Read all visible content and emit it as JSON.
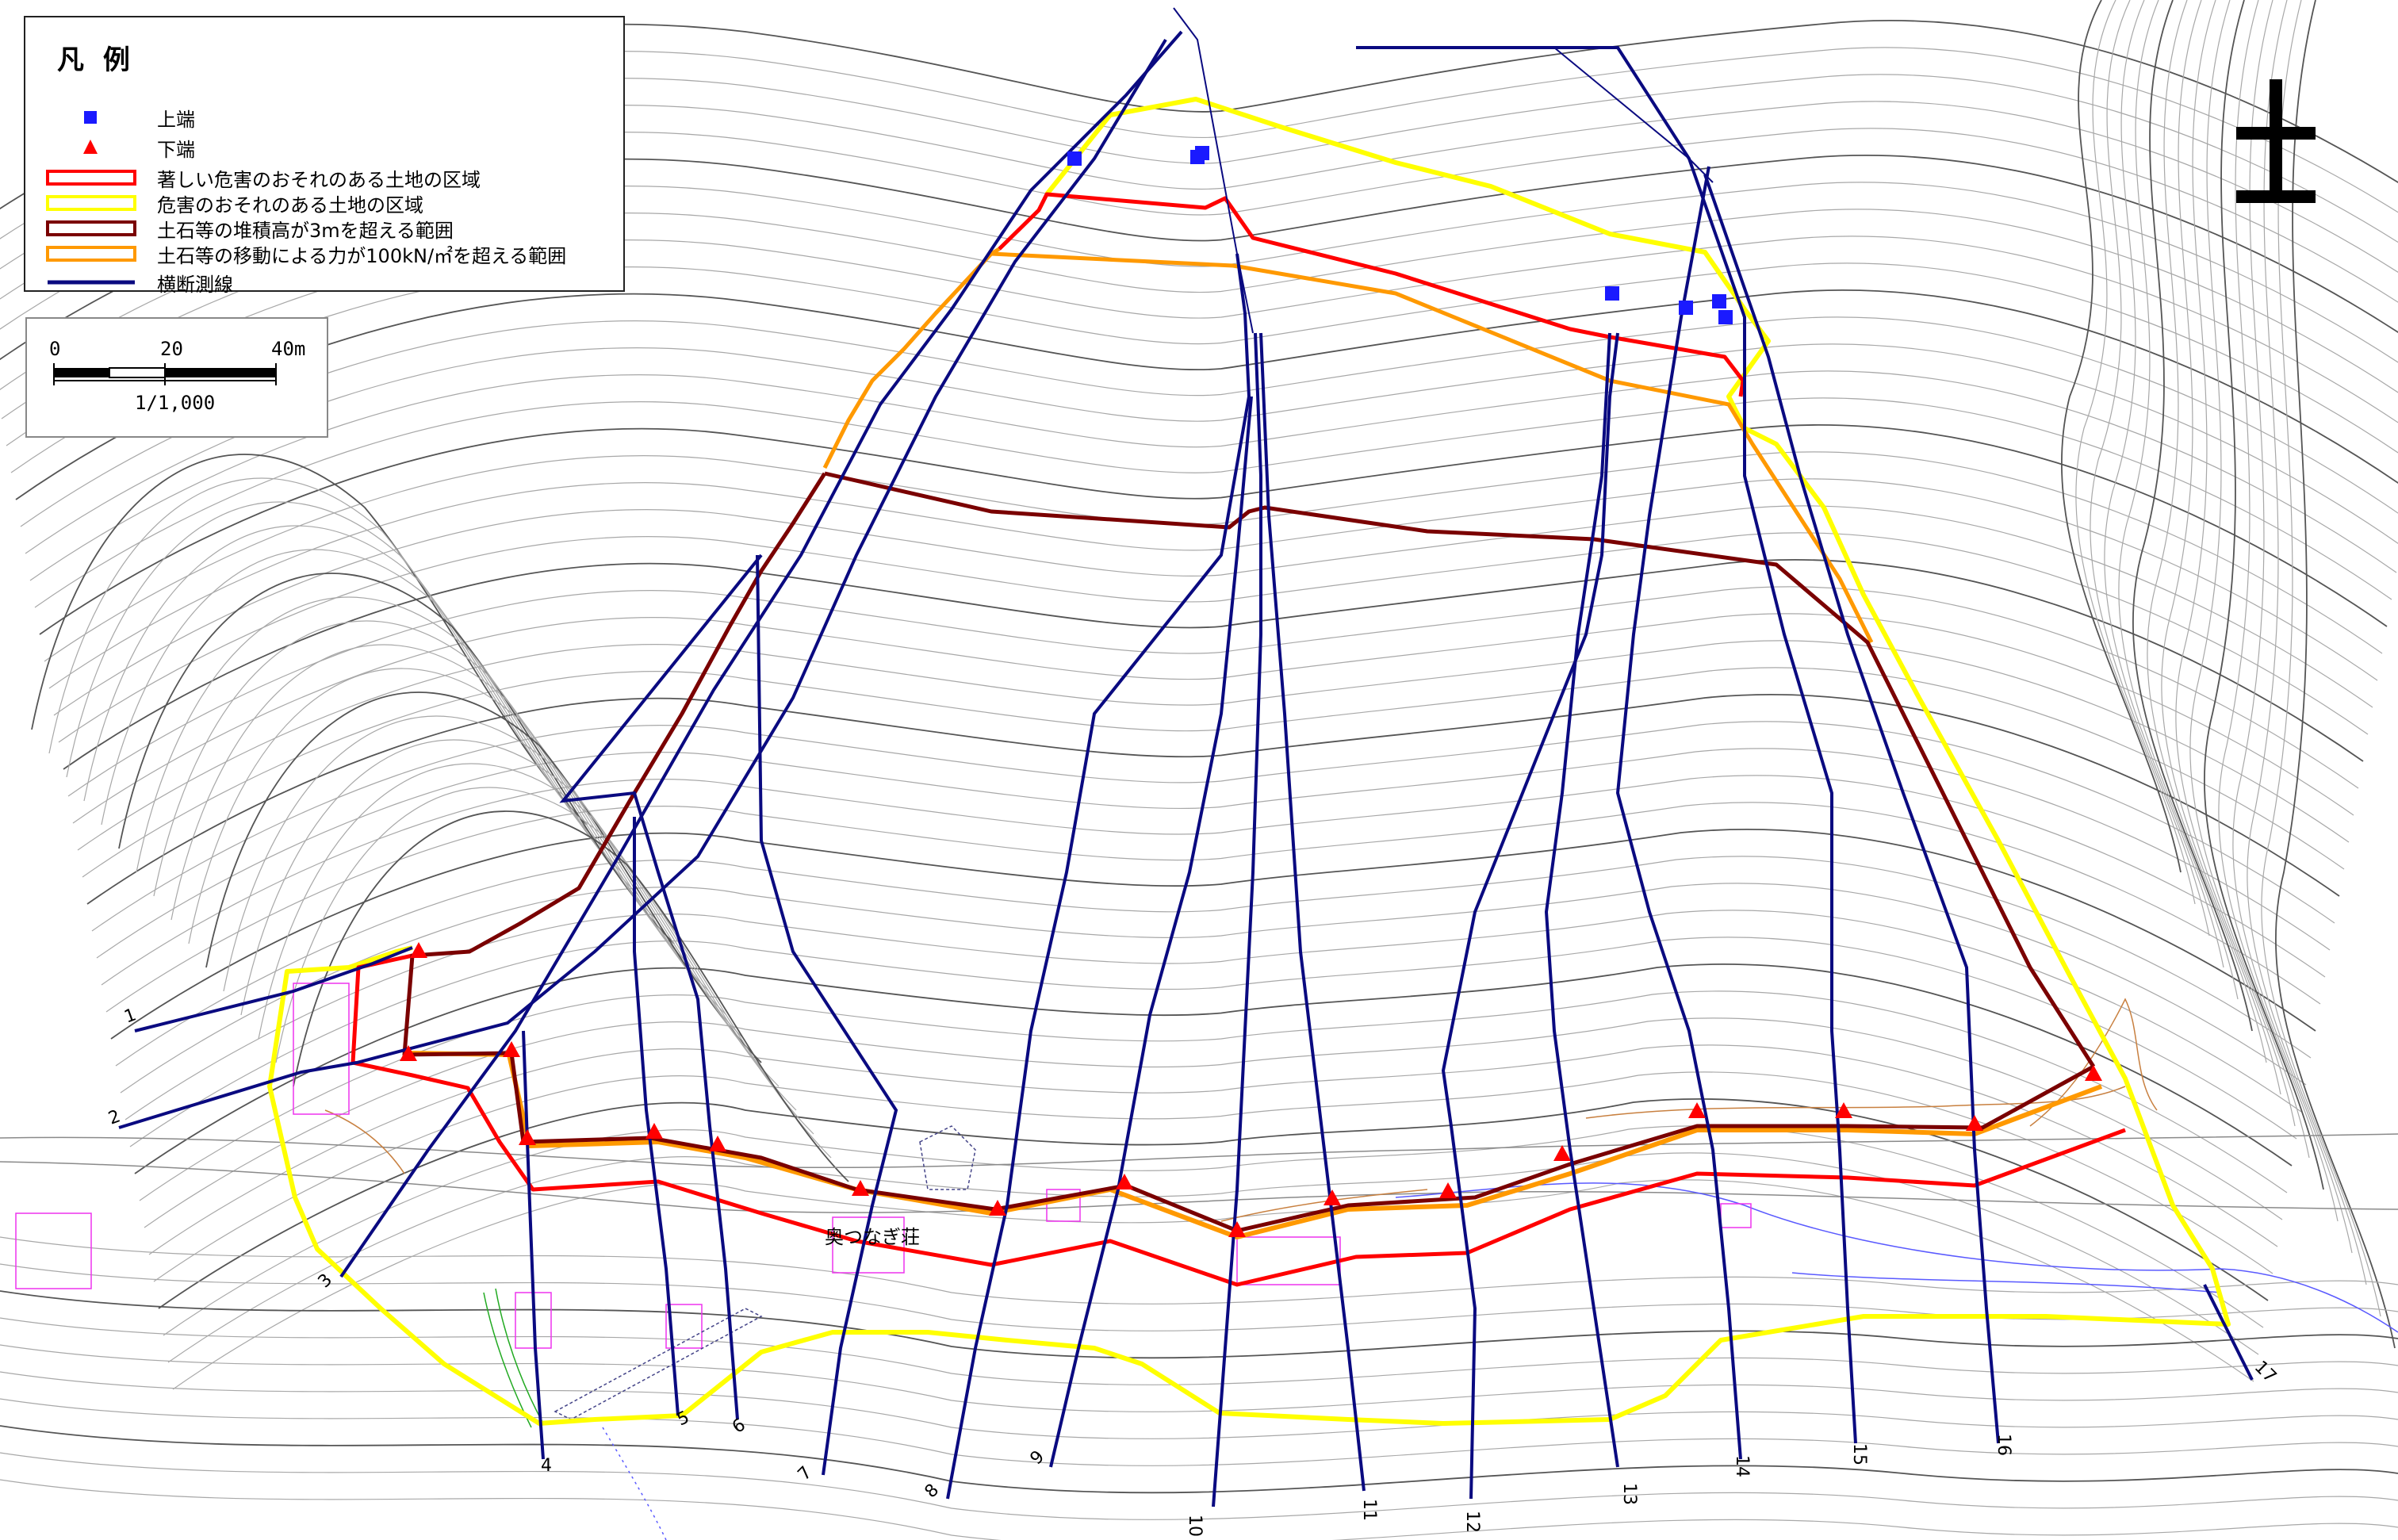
{
  "legend": {
    "title": "凡 例",
    "items": [
      {
        "label": "上端",
        "symbol": "square",
        "color": "#1a1aff"
      },
      {
        "label": "下端",
        "symbol": "triangle",
        "color": "#ff0000"
      },
      {
        "label": "著しい危害のおそれのある土地の区域",
        "symbol": "box",
        "color": "#ff0000"
      },
      {
        "label": "危害のおそれのある土地の区域",
        "symbol": "box",
        "color": "#ffff00"
      },
      {
        "label": "土石等の堆積高が3mを超える範囲",
        "symbol": "box",
        "color": "#7a0000"
      },
      {
        "label": "土石等の移動による力が100kN/㎡を超える範囲",
        "symbol": "box",
        "color": "#ff9900"
      },
      {
        "label": "横断測線",
        "symbol": "line",
        "color": "#0a0a80"
      }
    ]
  },
  "scale": {
    "ticks": [
      "0",
      "20",
      "40m"
    ],
    "ratio": "1/1,000"
  },
  "place_label": "奥つなぎ荘",
  "survey_line_numbers": [
    "1",
    "2",
    "3",
    "4",
    "5",
    "6",
    "7",
    "8",
    "9",
    "10",
    "11",
    "12",
    "13",
    "14",
    "15",
    "16",
    "17"
  ],
  "colors": {
    "top_marker": "#1a1aff",
    "bottom_marker": "#ff0000",
    "red_zone": "#ff0000",
    "yellow_zone": "#ffff00",
    "deposit_zone": "#7a0000",
    "force_zone": "#ff9900",
    "survey_line": "#0a0a80",
    "contour": "#9a9a9a"
  },
  "north_symbol": "north-arrow"
}
